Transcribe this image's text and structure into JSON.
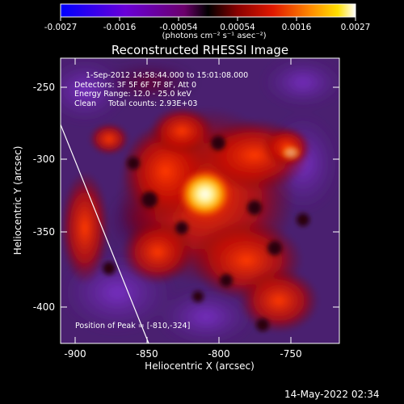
{
  "colorbar": {
    "tick_labels": [
      "-0.0027",
      "-0.0016",
      "-0.00054",
      "0.00054",
      "0.0016",
      "0.0027"
    ],
    "units": "(photons cm⁻² s⁻¹ asec⁻²)",
    "range": [
      -0.0027,
      0.0027
    ]
  },
  "plot": {
    "title": "Reconstructed RHESSI Image",
    "xlabel": "Heliocentric X (arcsec)",
    "ylabel": "Heliocentric Y (arcsec)",
    "xticks": [
      "-900",
      "-850",
      "-800",
      "-750"
    ],
    "yticks": [
      "-250",
      "-300",
      "-350",
      "-400"
    ],
    "xlim": [
      -910,
      -717
    ],
    "ylim": [
      -425,
      -232
    ]
  },
  "info": {
    "time_range": "1-Sep-2012 14:58:44.000 to 15:01:08.000",
    "detectors": "Detectors: 3F 5F 6F 7F 8F, Att 0",
    "energy": "Energy Range: 12.0 - 25.0 keV",
    "clean": "Clean     Total counts: 2.93E+03"
  },
  "peak_label": "Position of Peak = [-810,-324]",
  "peak": {
    "x": -810,
    "y": -324
  },
  "limb": {
    "x1": -910,
    "y1": -277,
    "x2": -849,
    "y2": -425
  },
  "timestamp": "14-May-2022 02:34"
}
